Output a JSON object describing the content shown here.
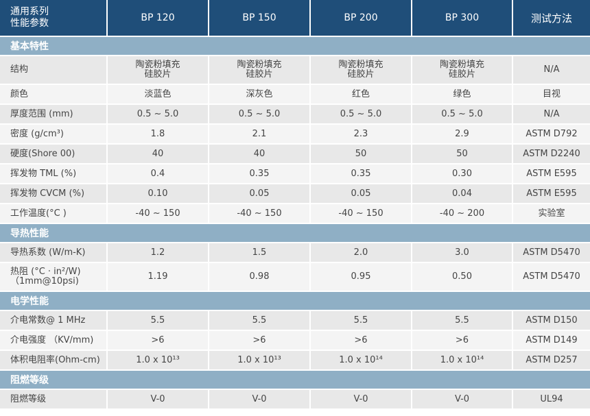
{
  "header": {
    "series_line1": "通用系列",
    "series_line2": "性能参数",
    "products": [
      "BP 120",
      "BP 150",
      "BP 200",
      "BP 300"
    ],
    "method": "测试方法"
  },
  "sections": [
    {
      "title": "基本特性",
      "rows": [
        {
          "label": "结构",
          "values": [
            [
              "陶瓷粉填充",
              "硅胶片"
            ],
            [
              "陶瓷粉填充",
              "硅胶片"
            ],
            [
              "陶瓷粉填充",
              "硅胶片"
            ],
            [
              "陶瓷粉填充",
              "硅胶片"
            ]
          ],
          "method": "N/A"
        },
        {
          "label": "颜色",
          "values": [
            "淡蓝色",
            "深灰色",
            "红色",
            "绿色"
          ],
          "method": "目视"
        },
        {
          "label": "厚度范围 (mm)",
          "values": [
            "0.5 ~ 5.0",
            "0.5 ~ 5.0",
            "0.5 ~ 5.0",
            "0.5 ~ 5.0"
          ],
          "method": "N/A"
        },
        {
          "label": "密度 (g/cm³)",
          "values": [
            "1.8",
            "2.1",
            "2.3",
            "2.9"
          ],
          "method": "ASTM D792"
        },
        {
          "label": "硬度(Shore 00)",
          "values": [
            "40",
            "40",
            "50",
            "50"
          ],
          "method": "ASTM D2240"
        },
        {
          "label": "挥发物 TML (%)",
          "values": [
            "0.4",
            "0.35",
            "0.35",
            "0.30"
          ],
          "method": "ASTM E595"
        },
        {
          "label": "挥发物 CVCM (%)",
          "values": [
            "0.10",
            "0.05",
            "0.05",
            "0.04"
          ],
          "method": "ASTM E595"
        },
        {
          "label": "工作温度(°C )",
          "values": [
            "-40 ~ 150",
            "-40 ~ 150",
            "-40 ~ 150",
            "-40 ~ 200"
          ],
          "method": "实验室"
        }
      ]
    },
    {
      "title": "导热性能",
      "rows": [
        {
          "label": "导热系数 (W/m-K)",
          "values": [
            "1.2",
            "1.5",
            "2.0",
            "3.0"
          ],
          "method": "ASTM D5470"
        },
        {
          "label": [
            "热阻 (°C · in²/W)",
            "（1mm@10psi)"
          ],
          "values": [
            "1.19",
            "0.98",
            "0.95",
            "0.50"
          ],
          "method": "ASTM D5470"
        }
      ]
    },
    {
      "title": "电学性能",
      "rows": [
        {
          "label": "介电常数@ 1 MHz",
          "values": [
            "5.5",
            "5.5",
            "5.5",
            "5.5"
          ],
          "method": "ASTM D150"
        },
        {
          "label": "介电强度 （KV/mm)",
          "values": [
            ">6",
            ">6",
            ">6",
            ">6"
          ],
          "method": "ASTM D149"
        },
        {
          "label": "体积电阻率(Ohm-cm)",
          "values": [
            "1.0 x 10¹³",
            "1.0 x 10¹³",
            "1.0 x 10¹⁴",
            "1.0 x 10¹⁴"
          ],
          "method": "ASTM D257"
        }
      ]
    },
    {
      "title": "阻燃等级",
      "rows": [
        {
          "label": "阻燃等级",
          "values": [
            "V-0",
            "V-0",
            "V-0",
            "V-0"
          ],
          "method": "UL94"
        }
      ]
    }
  ],
  "colors": {
    "header_bg": "#1f4e79",
    "section_bg": "#8fafc5",
    "row_odd": "#e8e8e8",
    "row_even": "#f4f4f4"
  }
}
